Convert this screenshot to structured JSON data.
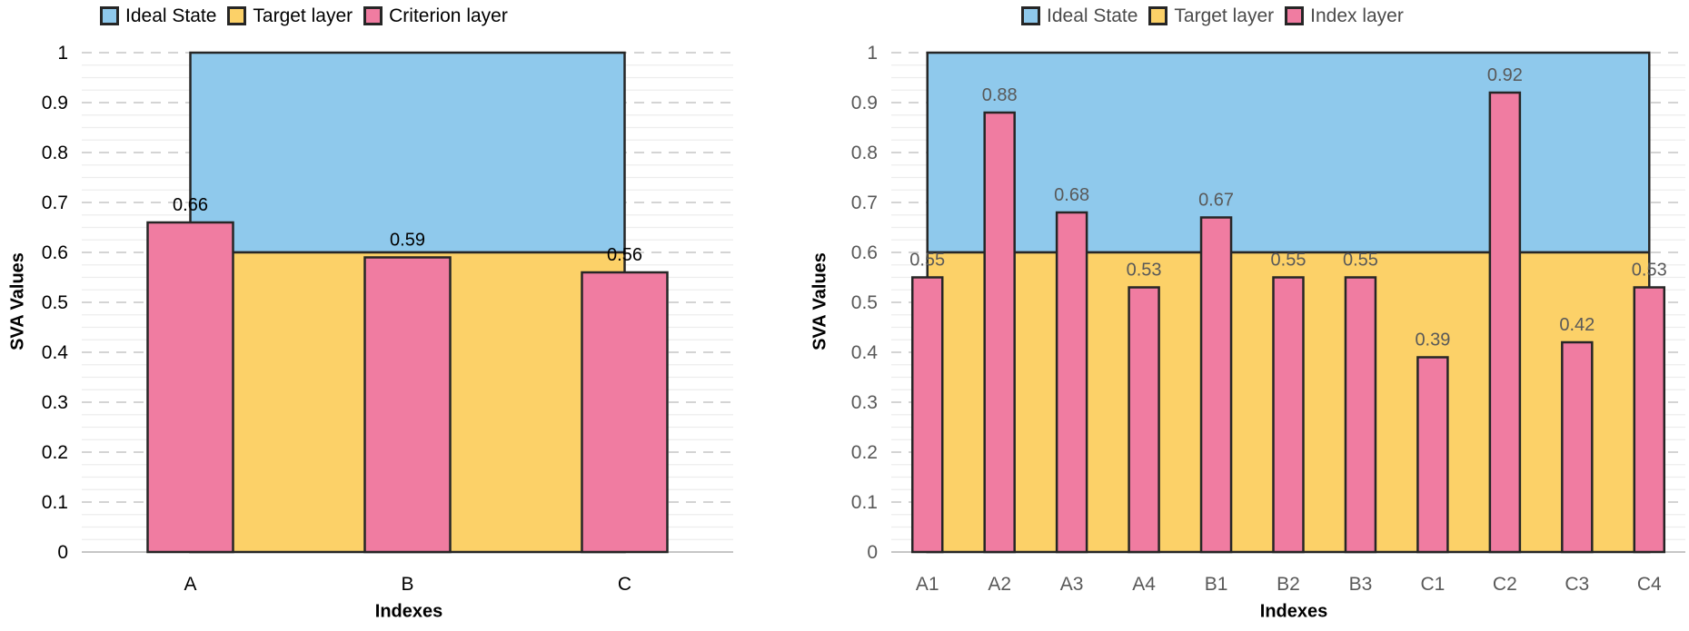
{
  "figure": {
    "background": "#ffffff",
    "outline_color": "#262626",
    "major_grid_color": "#D4D4D4",
    "minor_grid_color": "#EDEDED",
    "baseline_color": "#C6C6C6"
  },
  "chart_data": [
    {
      "type": "bar",
      "title": "",
      "xlabel": "Indexes",
      "ylabel": "SVA Values",
      "ylim": [
        0,
        1
      ],
      "ytick_step": 0.1,
      "minor_grid_step": 0.025,
      "grid": true,
      "legend_position": "top",
      "categories": [
        "A",
        "B",
        "C"
      ],
      "series": [
        {
          "name": "Ideal State",
          "type": "area",
          "value": 1.0,
          "color": "#8FC9EC"
        },
        {
          "name": "Target layer",
          "type": "area",
          "value": 0.6,
          "color": "#FCD168"
        },
        {
          "name": "Criterion layer",
          "type": "bar",
          "values": [
            0.66,
            0.59,
            0.56
          ],
          "color": "#F07CA1"
        }
      ],
      "bar_labels": [
        "0.66",
        "0.59",
        "0.56"
      ],
      "ytick_labels": [
        "0",
        "0.1",
        "0.2",
        "0.3",
        "0.4",
        "0.5",
        "0.6",
        "0.7",
        "0.8",
        "0.9",
        "1"
      ],
      "text_color": "#000000",
      "legend_text_color": "#000000"
    },
    {
      "type": "bar",
      "title": "",
      "xlabel": "Indexes",
      "ylabel": "SVA Values",
      "ylim": [
        0,
        1
      ],
      "ytick_step": 0.1,
      "minor_grid_step": 0.025,
      "grid": true,
      "legend_position": "top",
      "categories": [
        "A1",
        "A2",
        "A3",
        "A4",
        "B1",
        "B2",
        "B3",
        "C1",
        "C2",
        "C3",
        "C4"
      ],
      "series": [
        {
          "name": "Ideal State",
          "type": "area",
          "value": 1.0,
          "color": "#8FC9EC"
        },
        {
          "name": "Target layer",
          "type": "area",
          "value": 0.6,
          "color": "#FCD168"
        },
        {
          "name": "Index layer",
          "type": "bar",
          "values": [
            0.55,
            0.88,
            0.68,
            0.53,
            0.67,
            0.55,
            0.55,
            0.39,
            0.92,
            0.42,
            0.53
          ],
          "color": "#F07CA1"
        }
      ],
      "bar_labels": [
        "0.55",
        "0.88",
        "0.68",
        "0.53",
        "0.67",
        "0.55",
        "0.55",
        "0.39",
        "0.92",
        "0.42",
        "0.53"
      ],
      "ytick_labels": [
        "0",
        "0.1",
        "0.2",
        "0.3",
        "0.4",
        "0.5",
        "0.6",
        "0.7",
        "0.8",
        "0.9",
        "1"
      ],
      "text_color": "#595959",
      "legend_text_color": "#4A4A4A"
    }
  ]
}
